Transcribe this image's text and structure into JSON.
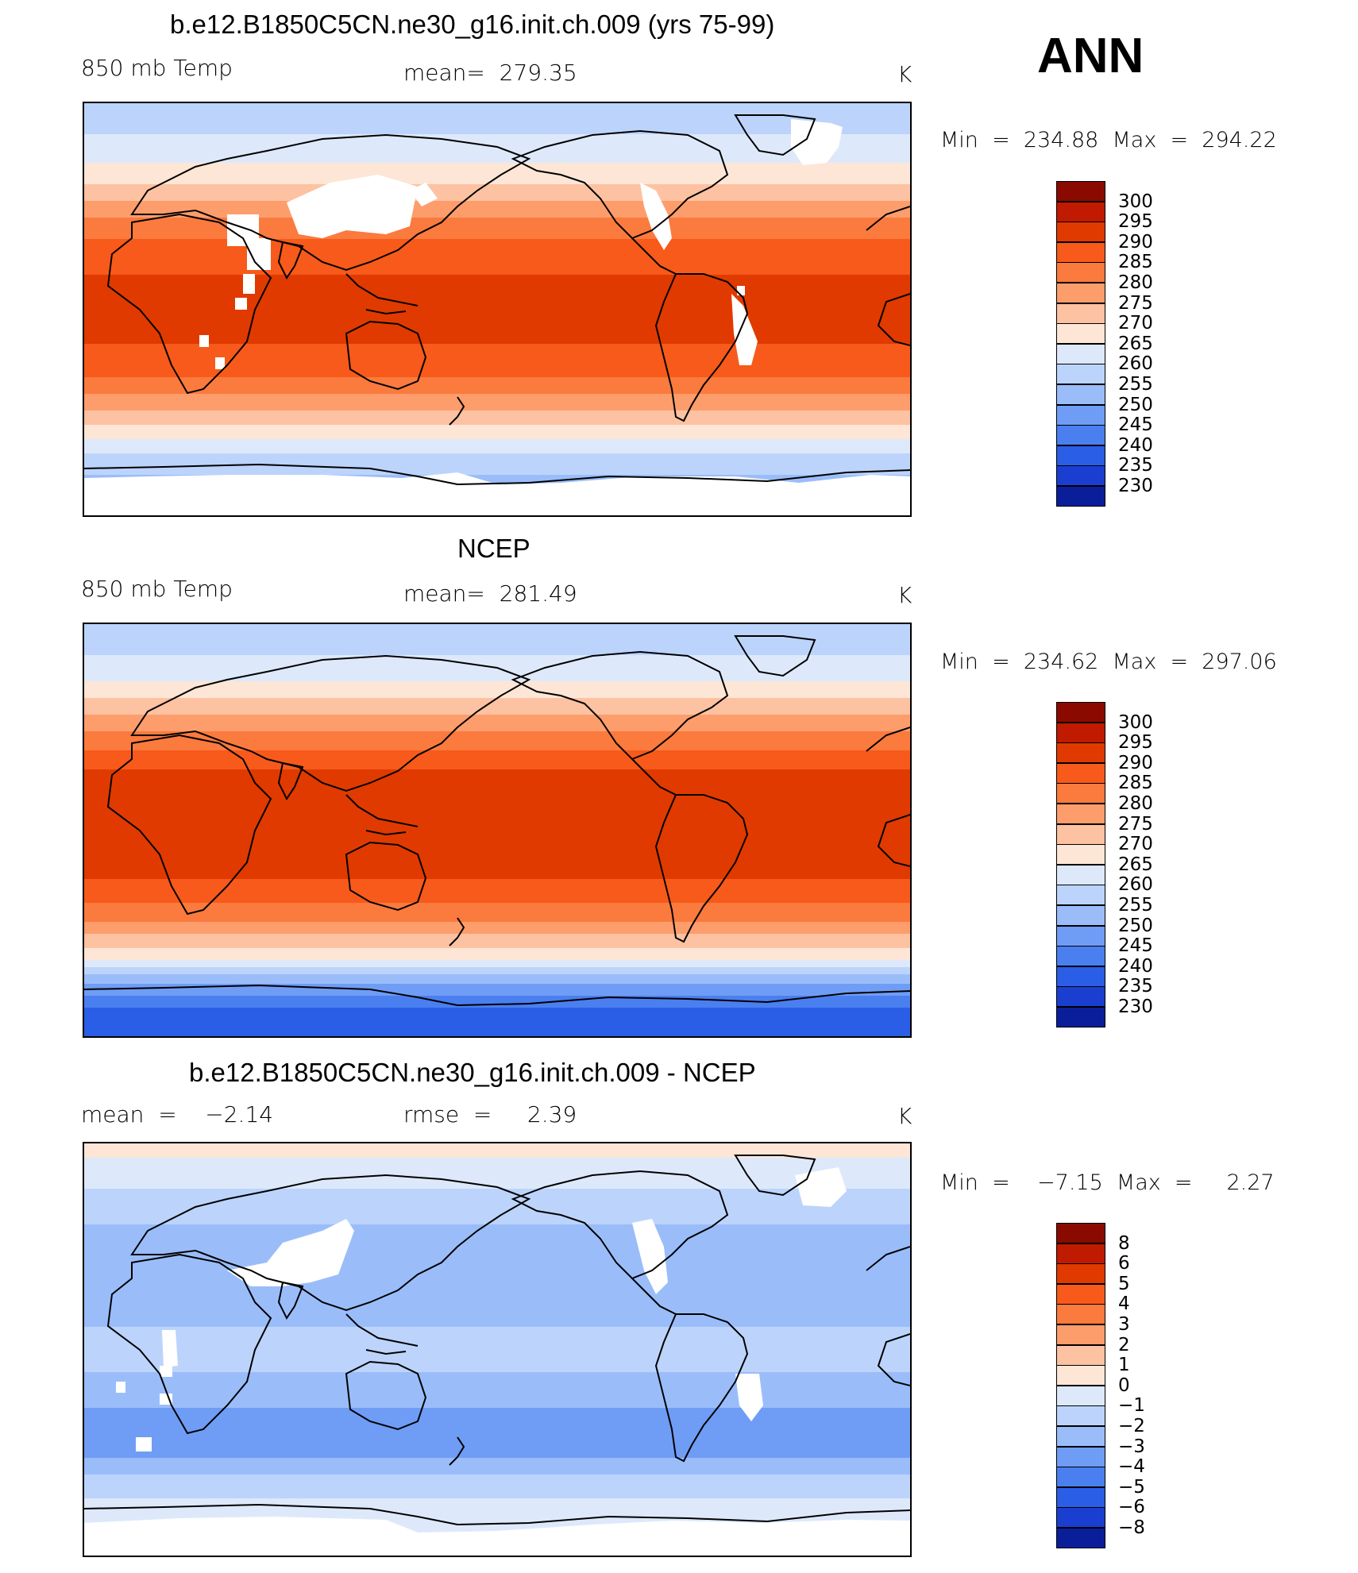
{
  "season": "ANN",
  "panels": [
    {
      "title": "b.e12.B1850C5CN.ne30_g16.init.ch.009 (yrs 75-99)",
      "left_label": "850 mb Temp",
      "center_label": "mean=  279.35",
      "units": "K",
      "minmax": "Min  =  234.88  Max  =  294.22",
      "legend": [
        "300",
        "295",
        "290",
        "285",
        "280",
        "275",
        "270",
        "265",
        "260",
        "255",
        "250",
        "245",
        "240",
        "235",
        "230"
      ]
    },
    {
      "title": "NCEP",
      "left_label": "850 mb Temp",
      "center_label": "mean=  281.49",
      "units": "K",
      "minmax": "Min  =  234.62  Max  =  297.06",
      "legend": [
        "300",
        "295",
        "290",
        "285",
        "280",
        "275",
        "270",
        "265",
        "260",
        "255",
        "250",
        "245",
        "240",
        "235",
        "230"
      ]
    },
    {
      "title": "b.e12.B1850C5CN.ne30_g16.init.ch.009 - NCEP",
      "left_label": "mean  =    −2.14",
      "center_label": "rmse  =     2.39",
      "units": "K",
      "minmax": "Min  =    −7.15  Max  =     2.27",
      "legend": [
        "8",
        "6",
        "5",
        "4",
        "3",
        "2",
        "1",
        "0",
        "−1",
        "−2",
        "−3",
        "−4",
        "−5",
        "−6",
        "−8"
      ]
    }
  ],
  "colors": {
    "temp_scale": [
      "#8b0a00",
      "#c01a00",
      "#e03a00",
      "#f75a1a",
      "#fb7a3e",
      "#fd9d6c",
      "#fdc2a2",
      "#fde6d6",
      "#dde9fb",
      "#bcd4fb",
      "#9abdfa",
      "#6f9df5",
      "#4a7ff0",
      "#2a5ee6",
      "#1a3fd0",
      "#0a1e9a"
    ],
    "diff_scale": [
      "#8b0a00",
      "#c01a00",
      "#e03a00",
      "#f75a1a",
      "#fb7a3e",
      "#fd9d6c",
      "#fdc2a2",
      "#fde6d6",
      "#dde9fb",
      "#bcd4fb",
      "#9abdfa",
      "#6f9df5",
      "#4a7ff0",
      "#2a5ee6",
      "#1a3fd0",
      "#0a1e9a"
    ]
  },
  "chart_data": [
    {
      "type": "heatmap",
      "title": "b.e12.B1850C5CN.ne30_g16.init.ch.009 (yrs 75-99)",
      "variable": "850 mb Temp",
      "units": "K",
      "mean": 279.35,
      "min": 234.88,
      "max": 294.22,
      "contour_levels": [
        230,
        235,
        240,
        245,
        250,
        255,
        260,
        265,
        270,
        275,
        280,
        285,
        290,
        295,
        300
      ],
      "zonal_profile_lat": [
        90,
        70,
        55,
        40,
        25,
        10,
        -10,
        -25,
        -40,
        -55,
        -65,
        -80
      ],
      "zonal_profile_values": [
        256,
        262,
        270,
        280,
        288,
        291,
        291,
        288,
        278,
        266,
        258,
        252
      ]
    },
    {
      "type": "heatmap",
      "title": "NCEP",
      "variable": "850 mb Temp",
      "units": "K",
      "mean": 281.49,
      "min": 234.62,
      "max": 297.06,
      "contour_levels": [
        230,
        235,
        240,
        245,
        250,
        255,
        260,
        265,
        270,
        275,
        280,
        285,
        290,
        295,
        300
      ],
      "zonal_profile_lat": [
        90,
        70,
        55,
        40,
        25,
        10,
        -10,
        -25,
        -40,
        -55,
        -65,
        -80
      ],
      "zonal_profile_values": [
        256,
        262,
        272,
        282,
        291,
        294,
        293,
        289,
        280,
        267,
        252,
        238
      ]
    },
    {
      "type": "heatmap",
      "title": "b.e12.B1850C5CN.ne30_g16.init.ch.009 - NCEP",
      "units": "K",
      "mean": -2.14,
      "rmse": 2.39,
      "min": -7.15,
      "max": 2.27,
      "contour_levels": [
        -8,
        -6,
        -5,
        -4,
        -3,
        -2,
        -1,
        0,
        1,
        2,
        3,
        4,
        5,
        6,
        8
      ],
      "zonal_profile_lat": [
        90,
        70,
        55,
        40,
        25,
        10,
        -10,
        -25,
        -40,
        -55,
        -65,
        -80
      ],
      "zonal_profile_values": [
        0.5,
        -1,
        -2,
        -3,
        -2.5,
        -2,
        -2,
        -3,
        -4,
        -2,
        -1,
        -0.5
      ]
    }
  ]
}
